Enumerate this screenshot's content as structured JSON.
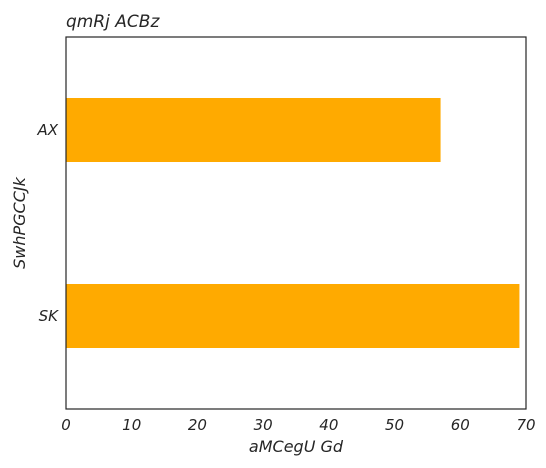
{
  "chart_data": {
    "type": "bar",
    "orientation": "horizontal",
    "title": "qmRj ACBz",
    "xlabel": "aMCegU Gd",
    "ylabel": "SwhPGCCJk",
    "categories": [
      "AX",
      "SK"
    ],
    "values": [
      57,
      69
    ],
    "xlim": [
      0,
      70
    ],
    "xticks": [
      "0",
      "10",
      "20",
      "30",
      "40",
      "50",
      "60",
      "70"
    ],
    "grid": false,
    "bar_color": "#FFAA00"
  }
}
